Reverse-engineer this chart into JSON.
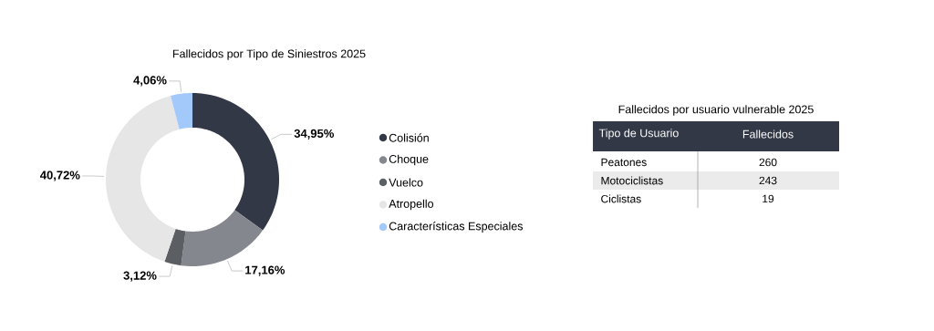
{
  "chart_data": [
    {
      "type": "donut",
      "title": "Fallecidos por Tipo de Siniestros 2025",
      "categories": [
        "Colisión",
        "Choque",
        "Vuelco",
        "Atropello",
        "Características Especiales"
      ],
      "values": [
        34.95,
        17.16,
        3.12,
        40.72,
        4.06
      ],
      "value_labels": [
        "34,95%",
        "17,16%",
        "3,12%",
        "40,72%",
        "4,06%"
      ],
      "colors": [
        "#323846",
        "#84878d",
        "#5b5e63",
        "#e6e6e6",
        "#a3c8fa"
      ],
      "legend": "right"
    },
    {
      "type": "other",
      "title": "Fallecidos por usuario vulnerable 2025",
      "xlabel": "Tipo de Usuario",
      "ylabel": "Fallecidos",
      "categories": [
        "Peatones",
        "Motociclistas",
        "Ciclistas"
      ],
      "values": [
        260,
        243,
        19
      ],
      "data_labels": true
    }
  ]
}
